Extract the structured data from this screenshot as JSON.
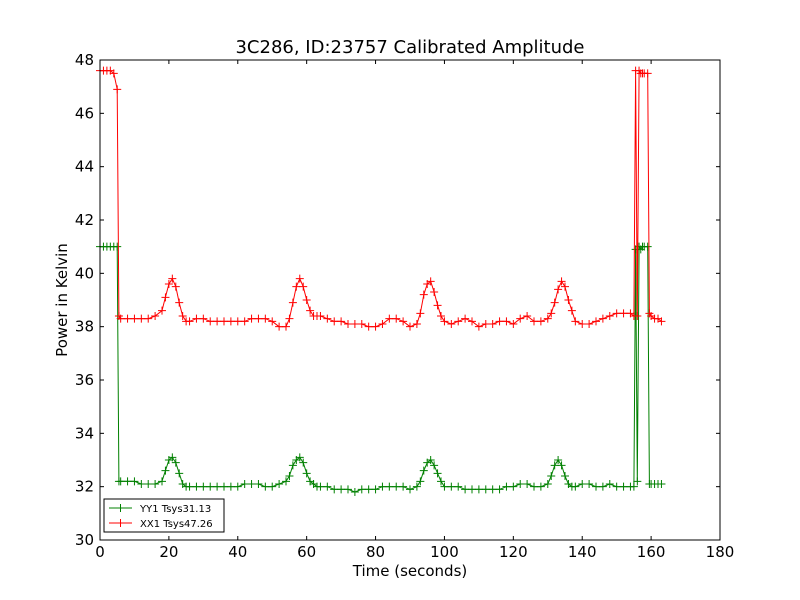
{
  "chart_data": {
    "type": "line",
    "title": "3C286, ID:23757 Calibrated Amplitude",
    "xlabel": "Time (seconds)",
    "ylabel": "Power in Kelvin",
    "xlim": [
      0,
      180
    ],
    "ylim": [
      30,
      48
    ],
    "xticks": [
      0,
      20,
      40,
      60,
      80,
      100,
      120,
      140,
      160,
      180
    ],
    "yticks": [
      30,
      32,
      34,
      36,
      38,
      40,
      42,
      44,
      46,
      48
    ],
    "grid": false,
    "legend_position": "lower-left",
    "marker": "plus",
    "series": [
      {
        "name": "YY1 Tsys31.13",
        "color": "#008000",
        "x": [
          0,
          1,
          2,
          3,
          4,
          5,
          5.5,
          6,
          8,
          10,
          12,
          14,
          16,
          18,
          19,
          20,
          21,
          22,
          23,
          24,
          25,
          26,
          28,
          30,
          32,
          34,
          36,
          38,
          40,
          42,
          44,
          46,
          48,
          50,
          52,
          54,
          55,
          56,
          57,
          58,
          59,
          60,
          61,
          62,
          63,
          64,
          66,
          68,
          70,
          72,
          74,
          76,
          78,
          80,
          82,
          84,
          86,
          88,
          90,
          92,
          93,
          94,
          95,
          96,
          97,
          98,
          99,
          100,
          102,
          104,
          106,
          108,
          110,
          112,
          114,
          116,
          118,
          120,
          122,
          124,
          126,
          128,
          130,
          131,
          132,
          133,
          134,
          135,
          136,
          137,
          138,
          140,
          142,
          144,
          146,
          148,
          150,
          152,
          154,
          155,
          155.5,
          156,
          156.5,
          157,
          157.5,
          158,
          159,
          159.5,
          160,
          161,
          162,
          163
        ],
        "values": [
          41.0,
          41.0,
          41.0,
          41.0,
          41.0,
          41.0,
          32.2,
          32.2,
          32.2,
          32.2,
          32.1,
          32.1,
          32.1,
          32.2,
          32.6,
          33.0,
          33.1,
          32.9,
          32.5,
          32.1,
          32.0,
          32.0,
          32.0,
          32.0,
          32.0,
          32.0,
          32.0,
          32.0,
          32.0,
          32.1,
          32.1,
          32.1,
          32.0,
          32.0,
          32.1,
          32.2,
          32.4,
          32.8,
          33.0,
          33.1,
          32.9,
          32.5,
          32.2,
          32.1,
          32.0,
          32.0,
          32.0,
          31.9,
          31.9,
          31.9,
          31.8,
          31.9,
          31.9,
          31.9,
          32.0,
          32.0,
          32.0,
          32.0,
          31.9,
          32.0,
          32.2,
          32.6,
          32.9,
          33.0,
          32.8,
          32.5,
          32.2,
          32.0,
          32.0,
          32.0,
          31.9,
          31.9,
          31.9,
          31.9,
          31.9,
          31.9,
          32.0,
          32.0,
          32.1,
          32.1,
          32.0,
          32.0,
          32.1,
          32.4,
          32.8,
          33.0,
          32.8,
          32.4,
          32.1,
          32.0,
          32.0,
          32.1,
          32.1,
          32.0,
          32.0,
          32.1,
          32.0,
          32.0,
          32.0,
          32.0,
          40.9,
          32.2,
          41.0,
          40.9,
          41.0,
          41.0,
          41.0,
          32.1,
          32.1,
          32.1,
          32.1,
          32.1
        ]
      },
      {
        "name": "XX1 Tsys47.26",
        "color": "#ff0000",
        "x": [
          0,
          1,
          2,
          3,
          4,
          5,
          5.5,
          6,
          8,
          10,
          12,
          14,
          16,
          18,
          19,
          20,
          21,
          22,
          23,
          24,
          25,
          26,
          28,
          30,
          32,
          34,
          36,
          38,
          40,
          42,
          44,
          46,
          48,
          50,
          52,
          54,
          55,
          56,
          57,
          58,
          59,
          60,
          61,
          62,
          63,
          64,
          66,
          68,
          70,
          72,
          74,
          76,
          78,
          80,
          82,
          84,
          86,
          88,
          90,
          92,
          93,
          94,
          95,
          96,
          97,
          98,
          99,
          100,
          102,
          104,
          106,
          108,
          110,
          112,
          114,
          116,
          118,
          120,
          122,
          124,
          126,
          128,
          130,
          131,
          132,
          133,
          134,
          135,
          136,
          137,
          138,
          140,
          142,
          144,
          146,
          148,
          150,
          152,
          154,
          155,
          155.5,
          156,
          156.5,
          157,
          157.5,
          158,
          159,
          159.5,
          160,
          161,
          162,
          163
        ],
        "values": [
          47.6,
          47.6,
          47.6,
          47.6,
          47.5,
          46.9,
          38.4,
          38.3,
          38.3,
          38.3,
          38.3,
          38.3,
          38.4,
          38.6,
          39.1,
          39.6,
          39.8,
          39.5,
          38.9,
          38.4,
          38.2,
          38.2,
          38.3,
          38.3,
          38.2,
          38.2,
          38.2,
          38.2,
          38.2,
          38.2,
          38.3,
          38.3,
          38.3,
          38.2,
          38.0,
          38.0,
          38.3,
          38.9,
          39.5,
          39.8,
          39.5,
          39.0,
          38.6,
          38.4,
          38.4,
          38.4,
          38.3,
          38.2,
          38.2,
          38.1,
          38.1,
          38.1,
          38.0,
          38.0,
          38.1,
          38.3,
          38.3,
          38.2,
          38.0,
          38.1,
          38.5,
          39.2,
          39.6,
          39.7,
          39.3,
          38.8,
          38.4,
          38.2,
          38.1,
          38.2,
          38.3,
          38.2,
          38.0,
          38.1,
          38.1,
          38.2,
          38.2,
          38.1,
          38.3,
          38.4,
          38.2,
          38.2,
          38.3,
          38.5,
          38.9,
          39.4,
          39.7,
          39.5,
          39.0,
          38.6,
          38.2,
          38.1,
          38.1,
          38.2,
          38.3,
          38.4,
          38.5,
          38.5,
          38.5,
          38.4,
          47.6,
          38.4,
          47.6,
          47.5,
          47.5,
          47.5,
          47.5,
          38.5,
          38.4,
          38.3,
          38.3,
          38.2
        ]
      }
    ]
  }
}
